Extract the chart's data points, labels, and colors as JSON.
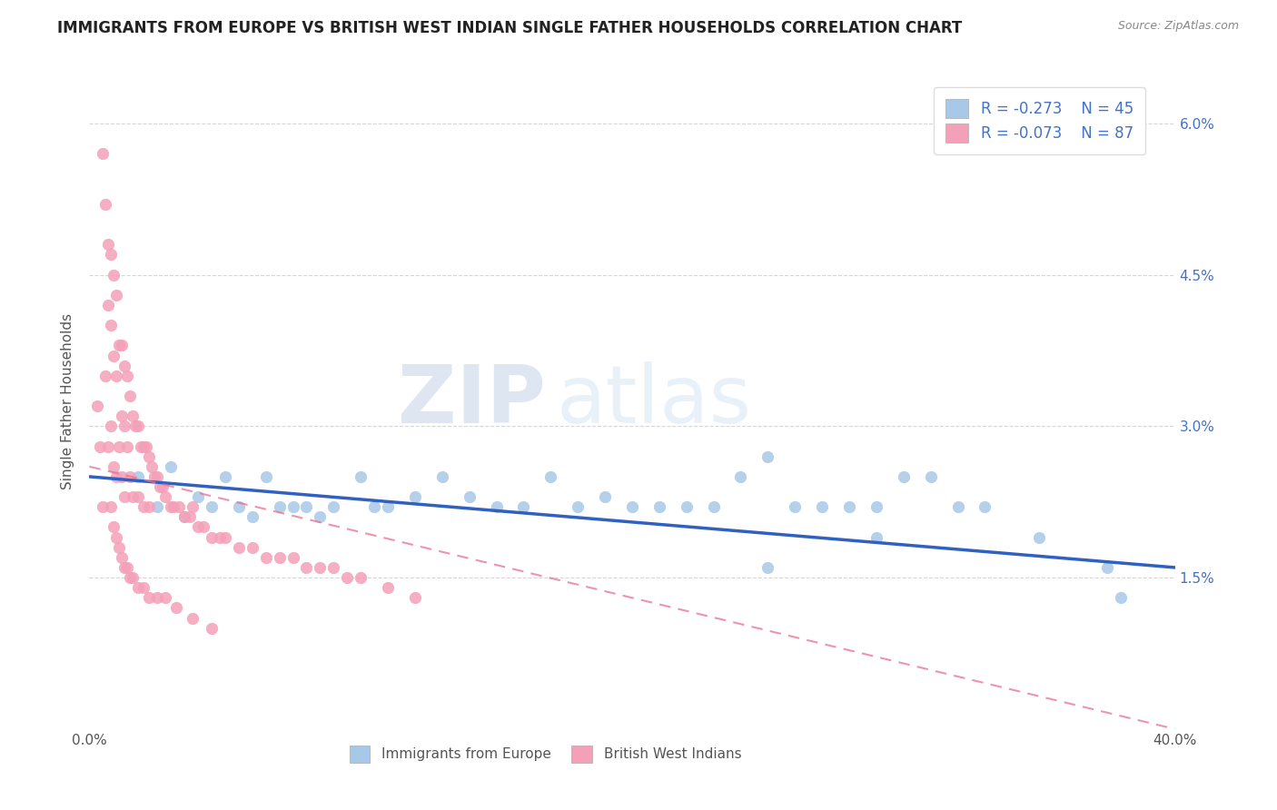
{
  "title": "IMMIGRANTS FROM EUROPE VS BRITISH WEST INDIAN SINGLE FATHER HOUSEHOLDS CORRELATION CHART",
  "source": "Source: ZipAtlas.com",
  "xlabel": "",
  "ylabel": "Single Father Households",
  "xlim": [
    0.0,
    0.4
  ],
  "ylim": [
    0.0,
    0.065
  ],
  "yticks": [
    0.015,
    0.03,
    0.045,
    0.06
  ],
  "ytick_labels": [
    "1.5%",
    "3.0%",
    "4.5%",
    "6.0%"
  ],
  "xticks": [
    0.0,
    0.1,
    0.2,
    0.3,
    0.4
  ],
  "xtick_labels": [
    "0.0%",
    "",
    "",
    "",
    "40.0%"
  ],
  "legend_r1": "-0.273",
  "legend_n1": "45",
  "legend_r2": "-0.073",
  "legend_n2": "87",
  "scatter_blue_color": "#a8c8e8",
  "scatter_pink_color": "#f4a0b8",
  "line_blue_color": "#3060c0",
  "line_pink_color": "#e87090",
  "watermark_zip": "ZIP",
  "watermark_atlas": "atlas",
  "background_color": "#ffffff",
  "title_fontsize": 12,
  "blue_x": [
    0.018,
    0.025,
    0.03,
    0.035,
    0.04,
    0.045,
    0.05,
    0.055,
    0.06,
    0.065,
    0.07,
    0.075,
    0.08,
    0.085,
    0.09,
    0.1,
    0.105,
    0.11,
    0.12,
    0.13,
    0.14,
    0.15,
    0.16,
    0.17,
    0.18,
    0.19,
    0.2,
    0.21,
    0.22,
    0.23,
    0.24,
    0.25,
    0.26,
    0.27,
    0.28,
    0.29,
    0.3,
    0.31,
    0.32,
    0.33,
    0.25,
    0.29,
    0.35,
    0.375,
    0.38
  ],
  "blue_y": [
    0.025,
    0.022,
    0.026,
    0.021,
    0.023,
    0.022,
    0.025,
    0.022,
    0.021,
    0.025,
    0.022,
    0.022,
    0.022,
    0.021,
    0.022,
    0.025,
    0.022,
    0.022,
    0.023,
    0.025,
    0.023,
    0.022,
    0.022,
    0.025,
    0.022,
    0.023,
    0.022,
    0.022,
    0.022,
    0.022,
    0.025,
    0.027,
    0.022,
    0.022,
    0.022,
    0.022,
    0.025,
    0.025,
    0.022,
    0.022,
    0.016,
    0.019,
    0.019,
    0.016,
    0.013
  ],
  "pink_x": [
    0.003,
    0.004,
    0.005,
    0.005,
    0.006,
    0.006,
    0.007,
    0.007,
    0.007,
    0.008,
    0.008,
    0.008,
    0.009,
    0.009,
    0.009,
    0.01,
    0.01,
    0.01,
    0.011,
    0.011,
    0.012,
    0.012,
    0.012,
    0.013,
    0.013,
    0.013,
    0.014,
    0.014,
    0.015,
    0.015,
    0.016,
    0.016,
    0.017,
    0.018,
    0.018,
    0.019,
    0.02,
    0.02,
    0.021,
    0.022,
    0.022,
    0.023,
    0.024,
    0.025,
    0.026,
    0.027,
    0.028,
    0.03,
    0.031,
    0.033,
    0.035,
    0.037,
    0.038,
    0.04,
    0.042,
    0.045,
    0.048,
    0.05,
    0.055,
    0.06,
    0.065,
    0.07,
    0.075,
    0.08,
    0.085,
    0.09,
    0.095,
    0.1,
    0.11,
    0.12,
    0.008,
    0.009,
    0.01,
    0.011,
    0.012,
    0.013,
    0.014,
    0.015,
    0.016,
    0.018,
    0.02,
    0.022,
    0.025,
    0.028,
    0.032,
    0.038,
    0.045
  ],
  "pink_y": [
    0.032,
    0.028,
    0.057,
    0.022,
    0.052,
    0.035,
    0.048,
    0.042,
    0.028,
    0.047,
    0.04,
    0.03,
    0.045,
    0.037,
    0.026,
    0.043,
    0.035,
    0.025,
    0.038,
    0.028,
    0.038,
    0.031,
    0.025,
    0.036,
    0.03,
    0.023,
    0.035,
    0.028,
    0.033,
    0.025,
    0.031,
    0.023,
    0.03,
    0.03,
    0.023,
    0.028,
    0.028,
    0.022,
    0.028,
    0.027,
    0.022,
    0.026,
    0.025,
    0.025,
    0.024,
    0.024,
    0.023,
    0.022,
    0.022,
    0.022,
    0.021,
    0.021,
    0.022,
    0.02,
    0.02,
    0.019,
    0.019,
    0.019,
    0.018,
    0.018,
    0.017,
    0.017,
    0.017,
    0.016,
    0.016,
    0.016,
    0.015,
    0.015,
    0.014,
    0.013,
    0.022,
    0.02,
    0.019,
    0.018,
    0.017,
    0.016,
    0.016,
    0.015,
    0.015,
    0.014,
    0.014,
    0.013,
    0.013,
    0.013,
    0.012,
    0.011,
    0.01
  ],
  "pink_trendline_x0": 0.0,
  "pink_trendline_y0": 0.026,
  "pink_trendline_x1": 0.4,
  "pink_trendline_y1": 0.0,
  "blue_trendline_x0": 0.0,
  "blue_trendline_y0": 0.025,
  "blue_trendline_x1": 0.4,
  "blue_trendline_y1": 0.016
}
